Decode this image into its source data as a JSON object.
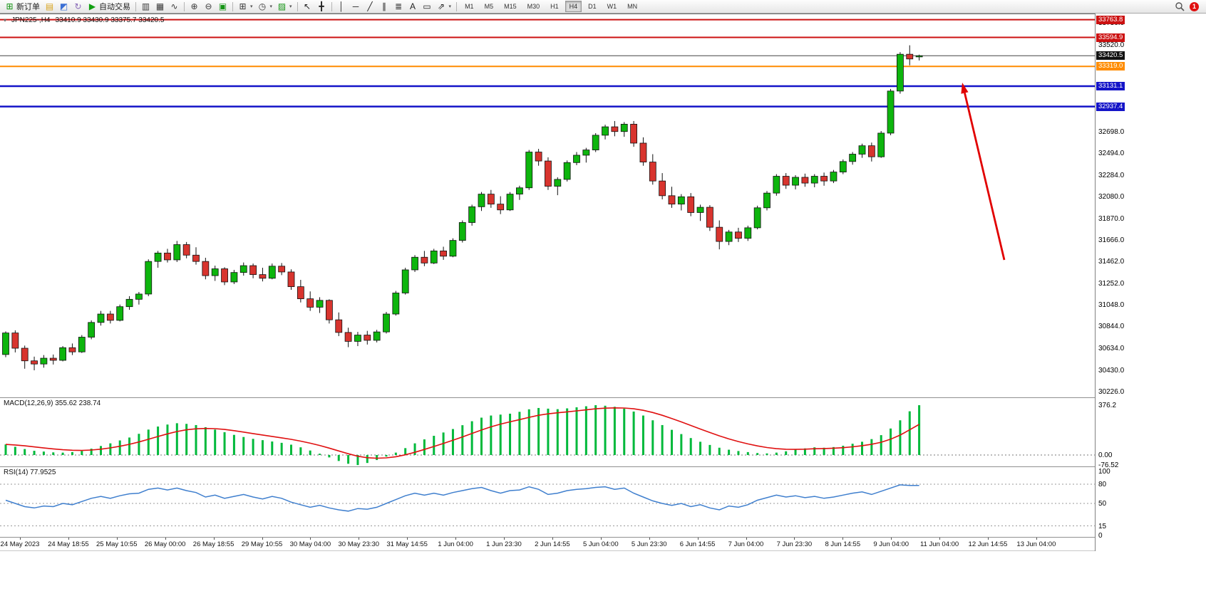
{
  "toolbar": {
    "items": [
      {
        "name": "new-order-icon",
        "glyph": "⊞",
        "color": "#149414",
        "label": "新订单"
      },
      {
        "name": "chart-window-icon",
        "glyph": "▤",
        "color": "#d9a520"
      },
      {
        "name": "market-watch-icon",
        "glyph": "◩",
        "color": "#3b6fd4"
      },
      {
        "name": "refresh-icon",
        "glyph": "↻",
        "color": "#8a6ab8"
      },
      {
        "name": "autotrading-icon",
        "glyph": "▶",
        "color": "#12a012",
        "label": "自动交易"
      },
      {
        "type": "separator"
      },
      {
        "name": "bar-chart-icon",
        "glyph": "▥",
        "color": "#3a3a3a"
      },
      {
        "name": "candlestick-chart-icon",
        "glyph": "▦",
        "color": "#3a3a3a"
      },
      {
        "name": "line-chart-icon",
        "glyph": "∿",
        "color": "#3a3a3a"
      },
      {
        "type": "separator"
      },
      {
        "name": "zoom-in-icon",
        "glyph": "⊕",
        "color": "#3a3a3a"
      },
      {
        "name": "zoom-out-icon",
        "glyph": "⊖",
        "color": "#3a3a3a"
      },
      {
        "name": "tile-windows-icon",
        "glyph": "▣",
        "color": "#149414"
      },
      {
        "type": "separator"
      },
      {
        "name": "new-chart-icon",
        "glyph": "⊞",
        "color": "#3a3a3a",
        "dropdown": true
      },
      {
        "name": "period-icon",
        "glyph": "◷",
        "color": "#3a3a3a",
        "dropdown": true
      },
      {
        "name": "indicators-icon",
        "glyph": "▨",
        "color": "#149414",
        "dropdown": true
      },
      {
        "type": "separator"
      },
      {
        "name": "cursor-icon",
        "glyph": "↖",
        "color": "#222222"
      },
      {
        "name": "crosshair-icon",
        "glyph": "╋",
        "color": "#222222"
      },
      {
        "type": "separator"
      },
      {
        "name": "vertical-line-icon",
        "glyph": "│",
        "color": "#222222"
      },
      {
        "name": "horizontal-line-icon",
        "glyph": "─",
        "color": "#222222"
      },
      {
        "name": "trendline-icon",
        "glyph": "╱",
        "color": "#222222"
      },
      {
        "name": "channel-icon",
        "glyph": "∥",
        "color": "#222222"
      },
      {
        "name": "fibonacci-icon",
        "glyph": "≣",
        "color": "#222222"
      },
      {
        "name": "text-icon",
        "glyph": "A",
        "color": "#222222"
      },
      {
        "name": "text-label-icon",
        "glyph": "▭",
        "color": "#222222"
      },
      {
        "name": "arrows-icon",
        "glyph": "⇗",
        "color": "#222222",
        "dropdown": true
      },
      {
        "type": "separator"
      }
    ],
    "timeframes": [
      "M1",
      "M5",
      "M15",
      "M30",
      "H1",
      "H4",
      "D1",
      "W1",
      "MN"
    ],
    "active_timeframe": "H4",
    "notification_badge": "1"
  },
  "chart": {
    "collapse_icon": "▾",
    "symbol_period": "JPN225-,H4",
    "ohlc_text": "33410.9 33430.9 33375.7 33420.5"
  },
  "chart_data": {
    "type": "candlestick",
    "symbol": "JPN225-",
    "timeframe": "H4",
    "ohlc_current": {
      "open": 33410.9,
      "high": 33430.9,
      "low": 33375.7,
      "close": 33420.5
    },
    "ylim": [
      30173,
      33822
    ],
    "colors": {
      "bull": "#0db50d",
      "bear": "#d8342e",
      "wick": "#111111",
      "price_line": "#444444",
      "macd_hist": "#00b93b",
      "macd_signal": "#e01010",
      "rsi_line": "#3f7fce",
      "arrow": "#e10000"
    },
    "current_price": 33420.5,
    "current_price_label": "33420.5",
    "horizontal_lines": [
      {
        "price": 33763.8,
        "label": "33763.8",
        "color": "#cc1111",
        "width": 2
      },
      {
        "price": 33594.9,
        "label": "33594.9",
        "color": "#cc1111",
        "width": 2
      },
      {
        "price": 33319.0,
        "label": "33319.0",
        "color": "#ff8c00",
        "width": 2
      },
      {
        "price": 33131.1,
        "label": "33131.1",
        "color": "#1414c8",
        "width": 2.5
      },
      {
        "price": 32937.4,
        "label": "32937.4",
        "color": "#1414c8",
        "width": 2.5
      }
    ],
    "y_axis_labels": [
      "33730.0",
      "33520.0",
      "32698.0",
      "32494.0",
      "32284.0",
      "32080.0",
      "31870.0",
      "31666.0",
      "31462.0",
      "31252.0",
      "31048.0",
      "30844.0",
      "30634.0",
      "30430.0",
      "30226.0"
    ],
    "candles": [
      [
        30580,
        30800,
        30555,
        30785
      ],
      [
        30785,
        30810,
        30600,
        30640
      ],
      [
        30640,
        30665,
        30445,
        30520
      ],
      [
        30520,
        30560,
        30430,
        30490
      ],
      [
        30490,
        30575,
        30455,
        30545
      ],
      [
        30545,
        30580,
        30485,
        30525
      ],
      [
        30525,
        30660,
        30515,
        30645
      ],
      [
        30645,
        30685,
        30575,
        30605
      ],
      [
        30605,
        30765,
        30595,
        30745
      ],
      [
        30745,
        30905,
        30725,
        30885
      ],
      [
        30885,
        30995,
        30855,
        30965
      ],
      [
        30965,
        30995,
        30875,
        30905
      ],
      [
        30905,
        31055,
        30895,
        31035
      ],
      [
        31035,
        31135,
        31005,
        31105
      ],
      [
        31105,
        31175,
        31055,
        31155
      ],
      [
        31155,
        31485,
        31135,
        31465
      ],
      [
        31465,
        31565,
        31405,
        31545
      ],
      [
        31545,
        31585,
        31455,
        31480
      ],
      [
        31480,
        31660,
        31460,
        31625
      ],
      [
        31625,
        31650,
        31495,
        31525
      ],
      [
        31525,
        31600,
        31435,
        31465
      ],
      [
        31465,
        31500,
        31295,
        31330
      ],
      [
        31330,
        31425,
        31280,
        31395
      ],
      [
        31395,
        31410,
        31240,
        31270
      ],
      [
        31270,
        31385,
        31250,
        31360
      ],
      [
        31360,
        31455,
        31330,
        31425
      ],
      [
        31425,
        31445,
        31305,
        31340
      ],
      [
        31340,
        31405,
        31275,
        31305
      ],
      [
        31305,
        31445,
        31295,
        31420
      ],
      [
        31420,
        31450,
        31335,
        31365
      ],
      [
        31365,
        31390,
        31195,
        31225
      ],
      [
        31225,
        31290,
        31075,
        31110
      ],
      [
        31110,
        31180,
        30995,
        31030
      ],
      [
        31030,
        31125,
        30975,
        31095
      ],
      [
        31095,
        31105,
        30875,
        30910
      ],
      [
        30910,
        30980,
        30755,
        30790
      ],
      [
        30790,
        30835,
        30650,
        30705
      ],
      [
        30705,
        30795,
        30660,
        30765
      ],
      [
        30765,
        30805,
        30675,
        30715
      ],
      [
        30715,
        30815,
        30695,
        30795
      ],
      [
        30795,
        30985,
        30780,
        30965
      ],
      [
        30965,
        31185,
        30950,
        31165
      ],
      [
        31165,
        31405,
        31150,
        31385
      ],
      [
        31385,
        31525,
        31365,
        31505
      ],
      [
        31505,
        31565,
        31420,
        31450
      ],
      [
        31450,
        31585,
        31440,
        31565
      ],
      [
        31565,
        31605,
        31480,
        31515
      ],
      [
        31515,
        31685,
        31505,
        31665
      ],
      [
        31665,
        31855,
        31645,
        31835
      ],
      [
        31835,
        32005,
        31805,
        31985
      ],
      [
        31985,
        32125,
        31945,
        32105
      ],
      [
        32105,
        32145,
        31975,
        32010
      ],
      [
        32010,
        32085,
        31915,
        31955
      ],
      [
        31955,
        32125,
        31945,
        32105
      ],
      [
        32105,
        32185,
        32050,
        32165
      ],
      [
        32165,
        32525,
        32145,
        32505
      ],
      [
        32505,
        32535,
        32375,
        32420
      ],
      [
        32420,
        32455,
        32145,
        32180
      ],
      [
        32180,
        32265,
        32095,
        32245
      ],
      [
        32245,
        32425,
        32225,
        32405
      ],
      [
        32405,
        32505,
        32380,
        32475
      ],
      [
        32475,
        32545,
        32405,
        32525
      ],
      [
        32525,
        32685,
        32505,
        32665
      ],
      [
        32665,
        32765,
        32625,
        32745
      ],
      [
        32745,
        32800,
        32655,
        32700
      ],
      [
        32700,
        32790,
        32650,
        32770
      ],
      [
        32770,
        32800,
        32555,
        32590
      ],
      [
        32590,
        32645,
        32375,
        32410
      ],
      [
        32410,
        32485,
        32195,
        32230
      ],
      [
        32230,
        32305,
        32055,
        32090
      ],
      [
        32090,
        32175,
        31975,
        32010
      ],
      [
        32010,
        32105,
        31950,
        32080
      ],
      [
        32080,
        32115,
        31895,
        31930
      ],
      [
        31930,
        32005,
        31850,
        31980
      ],
      [
        31980,
        32000,
        31755,
        31790
      ],
      [
        31790,
        31855,
        31580,
        31655
      ],
      [
        31655,
        31765,
        31620,
        31745
      ],
      [
        31745,
        31785,
        31650,
        31685
      ],
      [
        31685,
        31805,
        31660,
        31785
      ],
      [
        31785,
        31995,
        31770,
        31975
      ],
      [
        31975,
        32135,
        31950,
        32115
      ],
      [
        32115,
        32295,
        32090,
        32275
      ],
      [
        32275,
        32305,
        32155,
        32190
      ],
      [
        32190,
        32285,
        32150,
        32265
      ],
      [
        32265,
        32300,
        32175,
        32210
      ],
      [
        32210,
        32295,
        32170,
        32275
      ],
      [
        32275,
        32310,
        32185,
        32230
      ],
      [
        32230,
        32335,
        32210,
        32315
      ],
      [
        32315,
        32435,
        32295,
        32415
      ],
      [
        32415,
        32505,
        32385,
        32485
      ],
      [
        32485,
        32585,
        32450,
        32565
      ],
      [
        32565,
        32595,
        32415,
        32460
      ],
      [
        32460,
        32705,
        32450,
        32685
      ],
      [
        32685,
        33105,
        32665,
        33085
      ],
      [
        33085,
        33455,
        33060,
        33435
      ],
      [
        33435,
        33520,
        33330,
        33390
      ],
      [
        33410.9,
        33430.9,
        33375.7,
        33420.5
      ]
    ],
    "macd": {
      "label": "MACD(12,26,9) 355.62 238.74",
      "value": 355.62,
      "signal": 238.74,
      "ylim": [
        -86,
        430
      ],
      "axis": [
        {
          "label": "376.2",
          "value": 376.2
        },
        {
          "label": "0.00",
          "value": 0
        },
        {
          "label": "-76.52",
          "value": -76.52
        }
      ],
      "histogram": [
        80,
        62,
        45,
        32,
        26,
        20,
        18,
        22,
        30,
        48,
        68,
        88,
        110,
        132,
        160,
        192,
        215,
        230,
        240,
        235,
        226,
        210,
        192,
        172,
        152,
        136,
        122,
        112,
        102,
        92,
        78,
        58,
        34,
        10,
        -18,
        -45,
        -66,
        -76,
        -60,
        -38,
        -12,
        18,
        52,
        88,
        118,
        145,
        170,
        196,
        225,
        255,
        282,
        298,
        305,
        312,
        326,
        345,
        355,
        350,
        346,
        352,
        360,
        368,
        376,
        372,
        364,
        350,
        328,
        298,
        262,
        226,
        190,
        158,
        128,
        100,
        76,
        55,
        40,
        30,
        22,
        15,
        12,
        18,
        28,
        40,
        50,
        58,
        55,
        60,
        70,
        85,
        100,
        120,
        150,
        200,
        262,
        330,
        376
      ]
    },
    "rsi": {
      "label": "RSI(14) 77.9525",
      "value": 77.9525,
      "ylim": [
        0,
        100
      ],
      "levels": [
        80,
        50,
        15
      ],
      "axis": [
        {
          "label": "100",
          "value": 100
        },
        {
          "label": "80",
          "value": 80
        },
        {
          "label": "50",
          "value": 50
        },
        {
          "label": "15",
          "value": 15
        },
        {
          "label": "0",
          "value": 0
        }
      ],
      "values": [
        55,
        50,
        45,
        43,
        46,
        45,
        50,
        48,
        53,
        58,
        61,
        58,
        62,
        65,
        66,
        72,
        74,
        71,
        74,
        70,
        67,
        60,
        63,
        58,
        61,
        64,
        60,
        57,
        61,
        58,
        52,
        48,
        44,
        47,
        43,
        40,
        38,
        42,
        41,
        44,
        50,
        56,
        62,
        66,
        63,
        66,
        63,
        67,
        70,
        73,
        75,
        70,
        66,
        70,
        71,
        76,
        72,
        64,
        66,
        70,
        72,
        73,
        75,
        76,
        72,
        74,
        66,
        60,
        54,
        50,
        47,
        50,
        45,
        48,
        43,
        40,
        46,
        44,
        48,
        55,
        59,
        63,
        60,
        62,
        59,
        61,
        58,
        60,
        63,
        66,
        68,
        64,
        69,
        74,
        79,
        78,
        78
      ]
    },
    "x_labels": [
      "24 May 2023",
      "24 May 18:55",
      "25 May 10:55",
      "26 May 00:00",
      "26 May 18:55",
      "29 May 10:55",
      "30 May 04:00",
      "30 May 23:30",
      "31 May 14:55",
      "1 Jun 04:00",
      "1 Jun 23:30",
      "2 Jun 14:55",
      "5 Jun 04:00",
      "5 Jun 23:30",
      "6 Jun 14:55",
      "7 Jun 04:00",
      "7 Jun 23:30",
      "8 Jun 14:55",
      "9 Jun 04:00",
      "11 Jun 04:00",
      "12 Jun 14:55",
      "13 Jun 04:00"
    ],
    "annotation_arrow": {
      "tail": [
        1409,
        346
      ],
      "tip": [
        1350,
        97
      ],
      "color": "#e10000"
    }
  }
}
